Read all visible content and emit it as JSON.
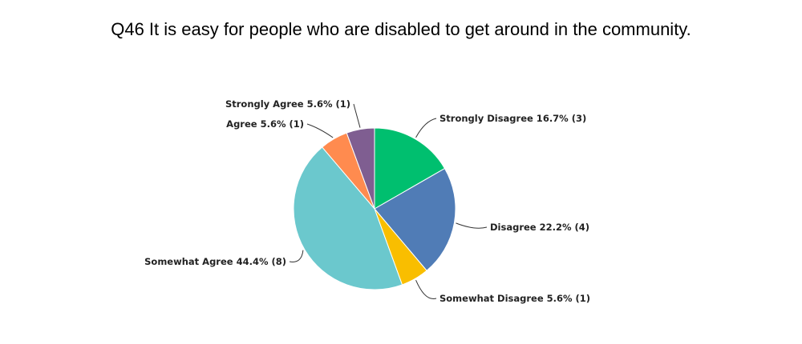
{
  "chart_data": {
    "type": "pie",
    "title": "Q46 It is easy for people who are disabled to get around in the community.",
    "slices": [
      {
        "label": "Strongly Disagree 16.7% (3)",
        "name": "Strongly Disagree",
        "percent": 16.7,
        "count": 3,
        "color": "#00bf6f"
      },
      {
        "label": "Disagree 22.2% (4)",
        "name": "Disagree",
        "percent": 22.2,
        "count": 4,
        "color": "#507cb6"
      },
      {
        "label": "Somewhat Disagree 5.6% (1)",
        "name": "Somewhat Disagree",
        "percent": 5.6,
        "count": 1,
        "color": "#f9be00"
      },
      {
        "label": "Somewhat Agree 44.4% (8)",
        "name": "Somewhat Agree",
        "percent": 44.4,
        "count": 8,
        "color": "#6bc8cd"
      },
      {
        "label": "Agree 5.6% (1)",
        "name": "Agree",
        "percent": 5.6,
        "count": 1,
        "color": "#ff8b4f"
      },
      {
        "label": "Strongly Agree 5.6% (1)",
        "name": "Strongly Agree",
        "percent": 5.6,
        "count": 1,
        "color": "#7f5e91"
      }
    ]
  }
}
